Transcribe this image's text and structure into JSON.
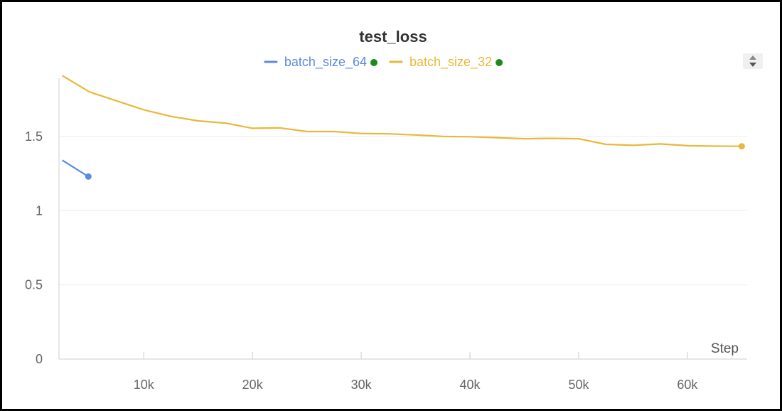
{
  "chart_data": {
    "type": "line",
    "title": "test_loss",
    "xlabel": "Step",
    "ylabel": "",
    "xlim": [
      2200,
      65500
    ],
    "ylim": [
      0,
      1.95
    ],
    "x_ticks": [
      10000,
      20000,
      30000,
      40000,
      50000,
      60000
    ],
    "x_tick_labels": [
      "10k",
      "20k",
      "30k",
      "40k",
      "50k",
      "60k"
    ],
    "y_ticks": [
      0,
      0.5,
      1,
      1.5
    ],
    "y_tick_labels": [
      "0",
      "0.5",
      "1",
      "1.5"
    ],
    "grid": true,
    "legend_position": "top-center",
    "series": [
      {
        "name": "batch_size_64",
        "color": "#5b8be0",
        "status_color": "#1a8a1a",
        "x": [
          2500,
          4900
        ],
        "y": [
          1.34,
          1.23
        ]
      },
      {
        "name": "batch_size_32",
        "color": "#e9b83a",
        "status_color": "#1a8a1a",
        "x": [
          2500,
          5000,
          7500,
          10000,
          12500,
          15000,
          17500,
          20000,
          22500,
          25000,
          27500,
          30000,
          32500,
          35000,
          37500,
          40000,
          42500,
          45000,
          47500,
          50000,
          52500,
          55000,
          57500,
          60000,
          62500,
          65000
        ],
        "y": [
          1.91,
          1.8,
          1.74,
          1.68,
          1.635,
          1.605,
          1.59,
          1.555,
          1.558,
          1.533,
          1.533,
          1.52,
          1.518,
          1.51,
          1.5,
          1.498,
          1.492,
          1.485,
          1.487,
          1.485,
          1.447,
          1.44,
          1.45,
          1.438,
          1.435,
          1.434
        ]
      }
    ]
  }
}
